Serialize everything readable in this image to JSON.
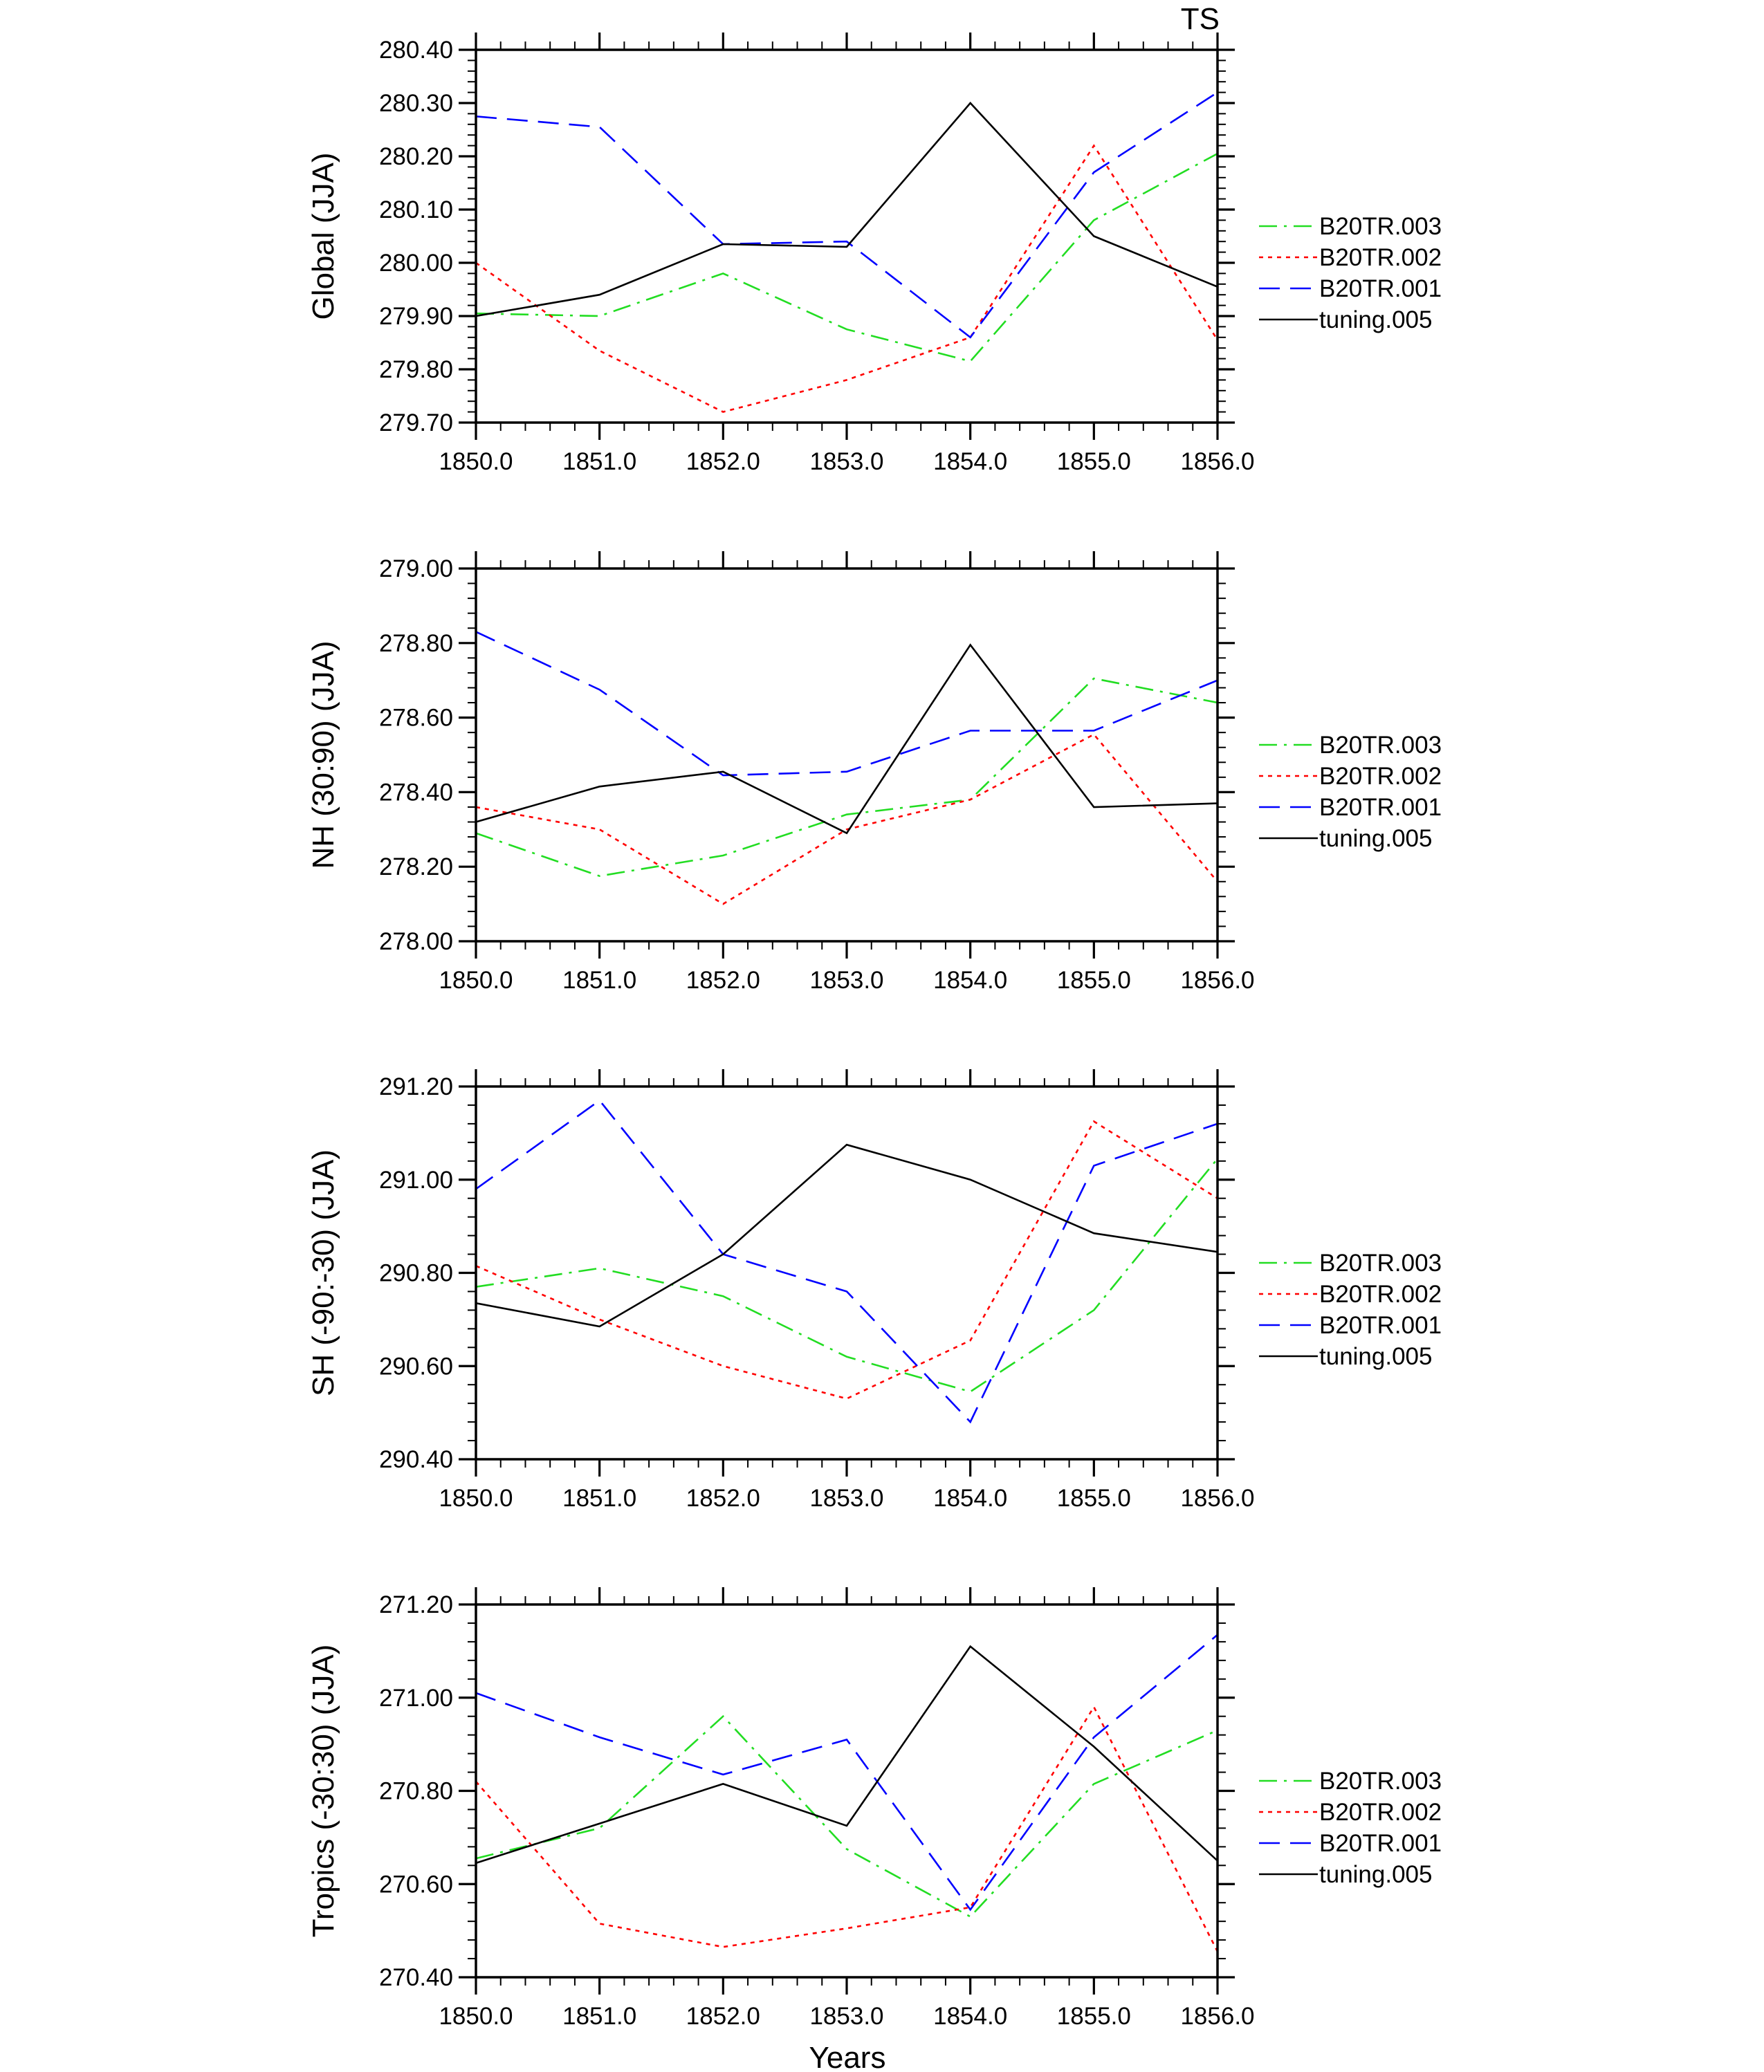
{
  "figure": {
    "title": "TS",
    "xlabel": "Years",
    "colors": {
      "B20TR.003": "#22dd22",
      "B20TR.002": "#ff0000",
      "B20TR.001": "#0000ff",
      "tuning.005": "#000000"
    }
  },
  "chart_data": [
    {
      "type": "line",
      "ylabel": "Global (JJA)",
      "x": [
        1850,
        1851,
        1852,
        1853,
        1854,
        1855,
        1856
      ],
      "x_tick_labels": [
        "1850.0",
        "1851.0",
        "1852.0",
        "1853.0",
        "1854.0",
        "1855.0",
        "1856.0"
      ],
      "xlim": [
        1850,
        1856
      ],
      "ylim": [
        279.7,
        280.4
      ],
      "y_ticks": [
        279.7,
        279.8,
        279.9,
        280.0,
        280.1,
        280.2,
        280.3,
        280.4
      ],
      "y_tick_labels": [
        "279.70",
        "279.80",
        "279.90",
        "280.00",
        "280.10",
        "280.20",
        "280.30",
        "280.40"
      ],
      "legend": [
        "B20TR.003",
        "B20TR.002",
        "B20TR.001",
        "tuning.005"
      ],
      "legend_position": "right",
      "series": [
        {
          "name": "B20TR.003",
          "style": "dashdot",
          "values": [
            279.905,
            279.9,
            279.98,
            279.875,
            279.815,
            280.08,
            280.205
          ]
        },
        {
          "name": "B20TR.002",
          "style": "dotted",
          "values": [
            280.0,
            279.835,
            279.72,
            279.78,
            279.86,
            280.22,
            279.855
          ]
        },
        {
          "name": "B20TR.001",
          "style": "dashed",
          "values": [
            280.275,
            280.255,
            280.035,
            280.04,
            279.86,
            280.17,
            280.32
          ]
        },
        {
          "name": "tuning.005",
          "style": "solid",
          "values": [
            279.9,
            279.94,
            280.035,
            280.03,
            280.3,
            280.05,
            279.955
          ]
        }
      ]
    },
    {
      "type": "line",
      "ylabel": "NH (30:90) (JJA)",
      "x": [
        1850,
        1851,
        1852,
        1853,
        1854,
        1855,
        1856
      ],
      "x_tick_labels": [
        "1850.0",
        "1851.0",
        "1852.0",
        "1853.0",
        "1854.0",
        "1855.0",
        "1856.0"
      ],
      "xlim": [
        1850,
        1856
      ],
      "ylim": [
        278.0,
        279.0
      ],
      "y_ticks": [
        278.0,
        278.2,
        278.4,
        278.6,
        278.8,
        279.0
      ],
      "y_tick_labels": [
        "278.00",
        "278.20",
        "278.40",
        "278.60",
        "278.80",
        "279.00"
      ],
      "legend": [
        "B20TR.003",
        "B20TR.002",
        "B20TR.001",
        "tuning.005"
      ],
      "legend_position": "right",
      "series": [
        {
          "name": "B20TR.003",
          "style": "dashdot",
          "values": [
            278.29,
            278.175,
            278.23,
            278.34,
            278.38,
            278.705,
            278.64
          ]
        },
        {
          "name": "B20TR.002",
          "style": "dotted",
          "values": [
            278.36,
            278.3,
            278.1,
            278.3,
            278.38,
            278.555,
            278.16
          ]
        },
        {
          "name": "B20TR.001",
          "style": "dashed",
          "values": [
            278.83,
            278.675,
            278.445,
            278.455,
            278.565,
            278.565,
            278.7
          ]
        },
        {
          "name": "tuning.005",
          "style": "solid",
          "values": [
            278.32,
            278.415,
            278.455,
            278.29,
            278.795,
            278.36,
            278.37
          ]
        }
      ]
    },
    {
      "type": "line",
      "ylabel": "SH (-90:-30) (JJA)",
      "x": [
        1850,
        1851,
        1852,
        1853,
        1854,
        1855,
        1856
      ],
      "x_tick_labels": [
        "1850.0",
        "1851.0",
        "1852.0",
        "1853.0",
        "1854.0",
        "1855.0",
        "1856.0"
      ],
      "xlim": [
        1850,
        1856
      ],
      "ylim": [
        290.4,
        291.2
      ],
      "y_ticks": [
        290.4,
        290.6,
        290.8,
        291.0,
        291.2
      ],
      "y_tick_labels": [
        "290.40",
        "290.60",
        "290.80",
        "291.00",
        "291.20"
      ],
      "legend": [
        "B20TR.003",
        "B20TR.002",
        "B20TR.001",
        "tuning.005"
      ],
      "legend_position": "right",
      "series": [
        {
          "name": "B20TR.003",
          "style": "dashdot",
          "values": [
            290.77,
            290.81,
            290.75,
            290.62,
            290.545,
            290.72,
            291.045
          ]
        },
        {
          "name": "B20TR.002",
          "style": "dotted",
          "values": [
            290.815,
            290.7,
            290.6,
            290.53,
            290.655,
            291.125,
            290.96
          ]
        },
        {
          "name": "B20TR.001",
          "style": "dashed",
          "values": [
            290.98,
            291.17,
            290.84,
            290.76,
            290.48,
            291.03,
            291.12
          ]
        },
        {
          "name": "tuning.005",
          "style": "solid",
          "values": [
            290.735,
            290.685,
            290.84,
            291.075,
            291.0,
            290.885,
            290.845
          ]
        }
      ]
    },
    {
      "type": "line",
      "ylabel": "Tropics (-30:30) (JJA)",
      "x": [
        1850,
        1851,
        1852,
        1853,
        1854,
        1855,
        1856
      ],
      "x_tick_labels": [
        "1850.0",
        "1851.0",
        "1852.0",
        "1853.0",
        "1854.0",
        "1855.0",
        "1856.0"
      ],
      "xlim": [
        1850,
        1856
      ],
      "ylim": [
        270.4,
        271.2
      ],
      "y_ticks": [
        270.4,
        270.6,
        270.8,
        271.0,
        271.2
      ],
      "y_tick_labels": [
        "270.40",
        "270.60",
        "270.80",
        "271.00",
        "271.20"
      ],
      "legend": [
        "B20TR.003",
        "B20TR.002",
        "B20TR.001",
        "tuning.005"
      ],
      "legend_position": "right",
      "series": [
        {
          "name": "B20TR.003",
          "style": "dashdot",
          "values": [
            270.655,
            270.72,
            270.96,
            270.675,
            270.53,
            270.815,
            270.93
          ]
        },
        {
          "name": "B20TR.002",
          "style": "dotted",
          "values": [
            270.82,
            270.515,
            270.465,
            270.505,
            270.55,
            270.98,
            270.455
          ]
        },
        {
          "name": "B20TR.001",
          "style": "dashed",
          "values": [
            271.01,
            270.915,
            270.835,
            270.91,
            270.545,
            270.915,
            271.135
          ]
        },
        {
          "name": "tuning.005",
          "style": "solid",
          "values": [
            270.645,
            270.73,
            270.815,
            270.725,
            271.11,
            270.895,
            270.65
          ]
        }
      ]
    }
  ]
}
